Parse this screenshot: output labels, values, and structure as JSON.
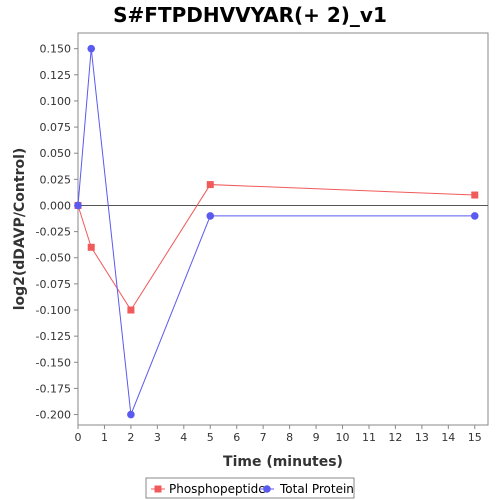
{
  "chart_data": {
    "type": "line",
    "title": "S#FTPDHVVYAR(+ 2)_v1",
    "xlabel": "Time (minutes)",
    "ylabel": "log2(dDAVP/Control)",
    "xlim": [
      0,
      15.5
    ],
    "ylim": [
      -0.21,
      0.165
    ],
    "x_ticks": [
      0,
      1,
      2,
      3,
      4,
      5,
      6,
      7,
      8,
      9,
      10,
      11,
      12,
      13,
      14,
      15
    ],
    "y_ticks": [
      0.15,
      0.125,
      0.1,
      0.075,
      0.05,
      0.025,
      0.0,
      -0.025,
      -0.05,
      -0.075,
      -0.1,
      -0.125,
      -0.15,
      -0.175,
      -0.2
    ],
    "y_tick_labels": [
      "0.150",
      "0.125",
      "0.100",
      "0.075",
      "0.050",
      "0.025",
      "0.000",
      "-0.025",
      "-0.050",
      "-0.075",
      "-0.100",
      "-0.125",
      "-0.150",
      "-0.175",
      "-0.200"
    ],
    "zero_line": true,
    "grid": false,
    "legend_position": "bottom",
    "series": [
      {
        "name": "Phosphopeptide",
        "color": "#f05a5a",
        "marker": "square",
        "x": [
          0,
          0.5,
          2,
          5,
          15
        ],
        "y": [
          0.0,
          -0.04,
          -0.1,
          0.02,
          0.01
        ]
      },
      {
        "name": "Total Protein",
        "color": "#5a5af0",
        "marker": "circle",
        "x": [
          0,
          0.5,
          2,
          5,
          15
        ],
        "y": [
          0.0,
          0.15,
          -0.2,
          -0.01,
          -0.01
        ]
      }
    ]
  }
}
